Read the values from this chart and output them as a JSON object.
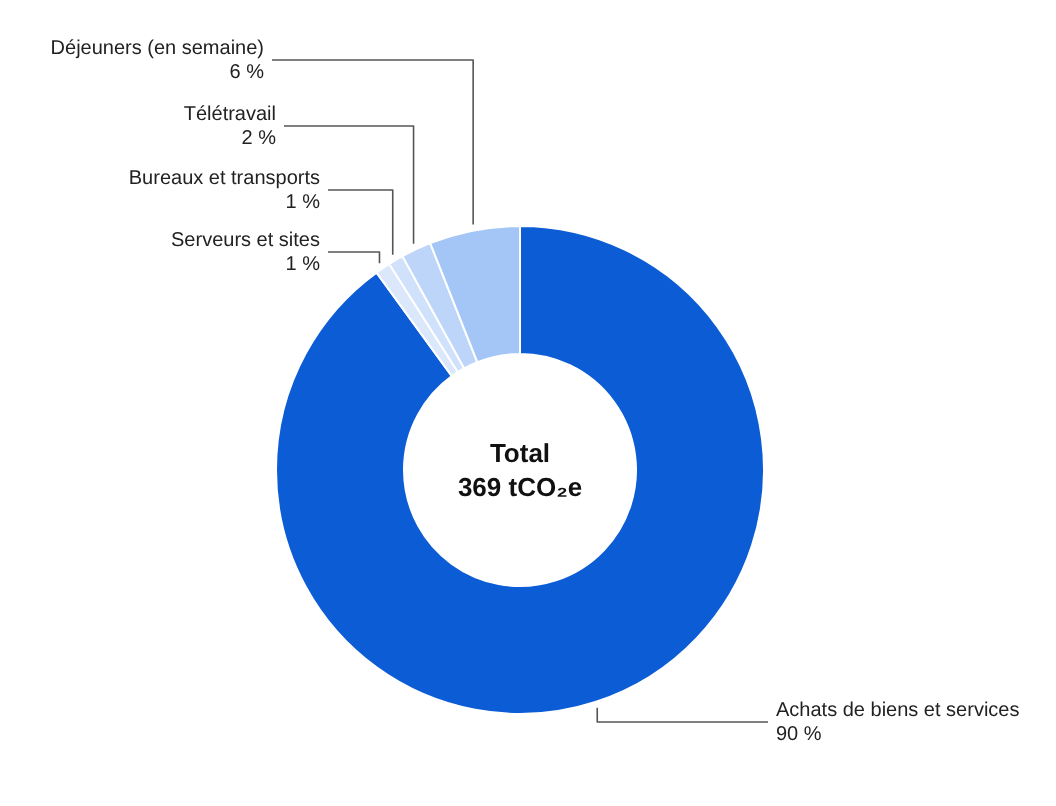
{
  "chart_data": {
    "type": "donut",
    "categories": [
      "Achats de biens et services",
      "Serveurs et sites",
      "Bureaux et transports",
      "Télétravail",
      "Déjeuners (en semaine)"
    ],
    "values": [
      90,
      1,
      1,
      2,
      6
    ],
    "colors": [
      "#0b5cd5",
      "#dbe8fc",
      "#cfe1fb",
      "#bcd5f9",
      "#a3c6f7"
    ],
    "value_labels": [
      "90 %",
      "1 %",
      "1 %",
      "2 %",
      "6 %"
    ],
    "annotations": [
      "Total",
      "369 tCO₂e"
    ]
  }
}
